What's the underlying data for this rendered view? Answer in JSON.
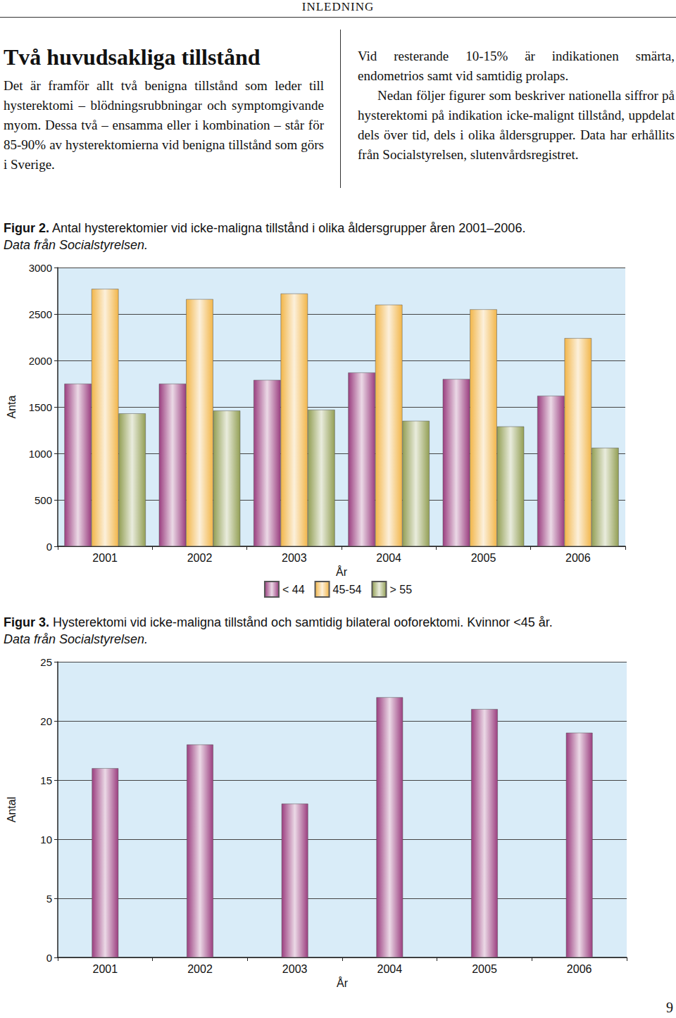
{
  "page": {
    "header": "INLEDNING",
    "heading": "Två huvudsakliga tillstånd",
    "left_text": "Det är framför allt två benigna tillstånd som leder till hysterektomi – blödningsrubbningar och symptomgivande myom. Dessa två – ensamma eller i kombination – står för 85-90% av hysterektomierna vid benigna tillstånd som görs i Sverige.",
    "right_text": [
      "Vid resterande 10-15% är indikationen smärta, endometrios samt vid samtidig prolaps.",
      "Nedan följer figurer som beskriver nationella siffror på hysterektomi på indikation icke-malignt tillstånd, uppdelat dels över tid, dels i olika åldersgrupper. Data har erhållits från Socialstyrelsen, slutenvårdsregistret."
    ],
    "page_number": "9"
  },
  "chart_data": [
    {
      "type": "bar",
      "figure_label": "Figur 2.",
      "title": "Antal hysterektomier vid icke-maligna tillstånd i olika åldersgrupper åren 2001–2006.",
      "source": "Data från Socialstyrelsen.",
      "x_label": "År",
      "y_label": "Anta",
      "categories": [
        "2001",
        "2002",
        "2003",
        "2004",
        "2005",
        "2006"
      ],
      "series": [
        {
          "name": "< 44",
          "color": "#9b3f80",
          "values": [
            1750,
            1750,
            1790,
            1870,
            1800,
            1620
          ]
        },
        {
          "name": "45-54",
          "color": "#f2b64a",
          "values": [
            2770,
            2660,
            2720,
            2600,
            2550,
            2240
          ]
        },
        {
          "name": "> 55",
          "color": "#939f55",
          "values": [
            1430,
            1460,
            1470,
            1350,
            1290,
            1060
          ]
        }
      ],
      "ylim": [
        0,
        3000
      ],
      "yticks": [
        0,
        500,
        1000,
        1500,
        2000,
        2500,
        3000
      ],
      "grid": true,
      "legend": "bottom"
    },
    {
      "type": "bar",
      "figure_label": "Figur 3.",
      "title": "Hysterektomi vid icke-maligna tillstånd och samtidig bilateral ooforektomi. Kvinnor <45 år.",
      "source": "Data från Socialstyrelsen.",
      "x_label": "År",
      "y_label": "Antal",
      "categories": [
        "2001",
        "2002",
        "2003",
        "2004",
        "2005",
        "2006"
      ],
      "values": [
        16,
        18,
        13,
        22,
        21,
        19
      ],
      "color": "#9b3f80",
      "ylim": [
        0,
        25
      ],
      "yticks": [
        0,
        5,
        10,
        15,
        20,
        25
      ],
      "grid": true
    }
  ]
}
